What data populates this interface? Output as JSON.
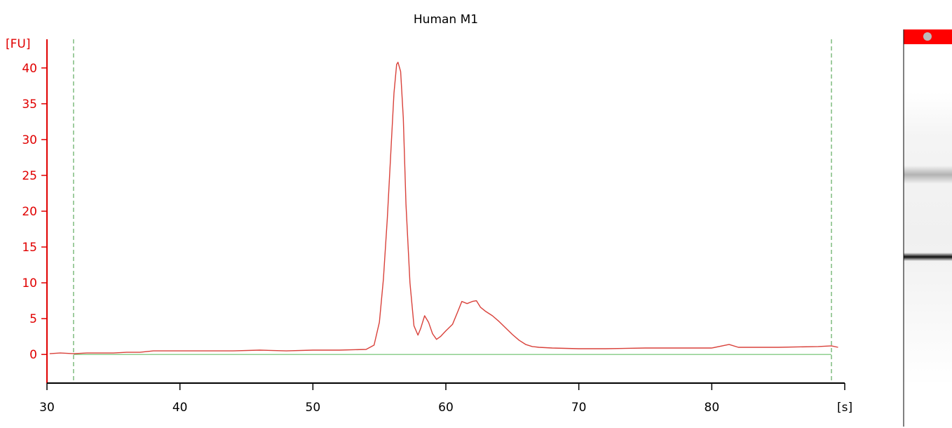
{
  "chart_data": {
    "type": "line",
    "title": "Human M1",
    "xlabel": "[s]",
    "ylabel": "[FU]",
    "xlim": [
      30,
      90
    ],
    "ylim": [
      -4,
      44
    ],
    "x_ticks": [
      30,
      40,
      50,
      60,
      70,
      80
    ],
    "y_ticks": [
      0,
      5,
      10,
      15,
      20,
      25,
      30,
      35,
      40
    ],
    "grid": false,
    "colors": {
      "trace": "#d9413a",
      "axis_y": "#e00000",
      "axis_x": "#000000",
      "markers": "#3f9a3f",
      "baseline": "#6abf6a"
    },
    "markers_x": [
      32,
      89
    ],
    "baseline_y": 0,
    "series": [
      {
        "x": [
          30.2,
          31,
          32,
          33,
          34,
          35,
          36,
          37,
          38,
          39,
          40,
          42,
          44,
          46,
          48,
          50,
          52,
          54,
          54.6,
          55,
          55.3,
          55.6,
          55.9,
          56.1,
          56.3,
          56.4,
          56.6,
          56.8,
          57,
          57.3,
          57.6,
          57.9,
          58.1,
          58.4,
          58.7,
          59,
          59.3,
          59.6,
          60,
          60.5,
          60.9,
          61.2,
          61.6,
          62,
          62.3,
          62.6,
          63,
          63.5,
          64,
          64.5,
          65,
          65.5,
          66,
          66.5,
          67,
          68,
          70,
          72,
          75,
          78,
          80,
          81.3,
          82,
          85,
          88,
          89,
          89.5
        ],
        "y": [
          0.1,
          0.2,
          0.1,
          0.2,
          0.2,
          0.2,
          0.3,
          0.3,
          0.5,
          0.5,
          0.5,
          0.5,
          0.5,
          0.6,
          0.5,
          0.6,
          0.6,
          0.7,
          1.3,
          4.5,
          10.5,
          19.0,
          29.5,
          36.5,
          40.5,
          40.8,
          39.5,
          33.0,
          21.0,
          10.0,
          4.0,
          2.7,
          3.6,
          5.4,
          4.5,
          2.9,
          2.1,
          2.5,
          3.3,
          4.2,
          6.0,
          7.4,
          7.1,
          7.4,
          7.5,
          6.6,
          6.0,
          5.4,
          4.6,
          3.7,
          2.8,
          2.0,
          1.4,
          1.1,
          1.0,
          0.9,
          0.8,
          0.8,
          0.9,
          0.9,
          0.9,
          1.4,
          1.0,
          1.0,
          1.1,
          1.2,
          1.0
        ]
      }
    ]
  },
  "gel_lane": {
    "bands": [
      {
        "position": 0.28,
        "intensity": 0.3
      },
      {
        "position": 0.56,
        "intensity": 0.95
      }
    ],
    "marker_color": "#ff0000"
  }
}
